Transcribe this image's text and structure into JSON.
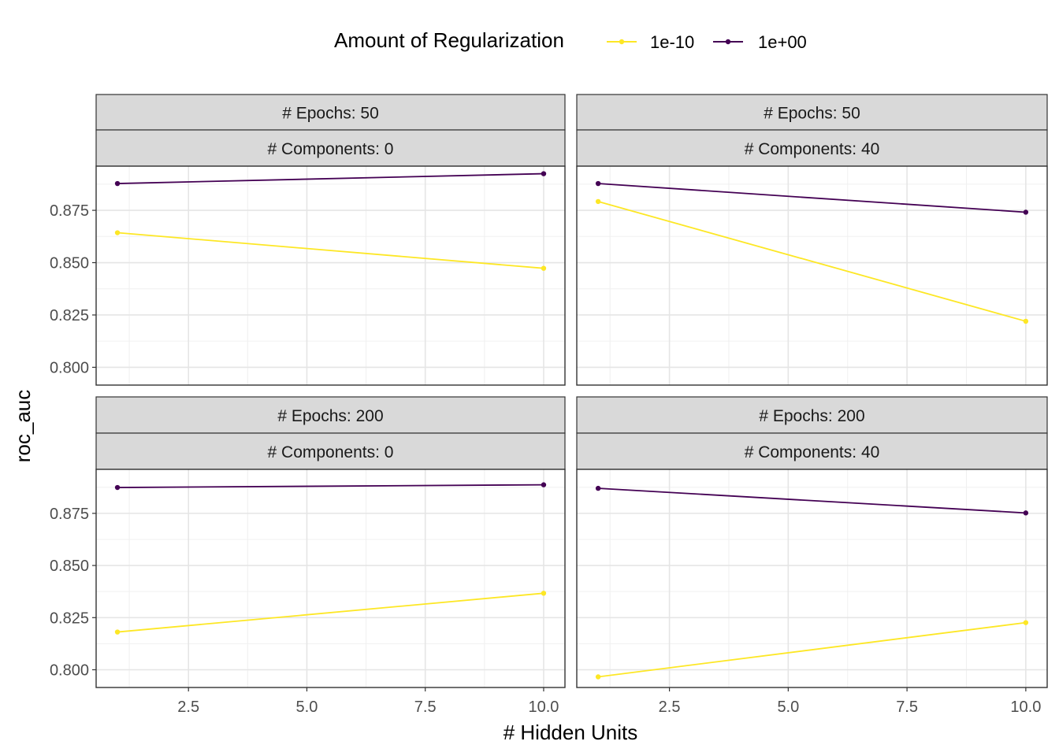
{
  "chart_data": {
    "type": "line",
    "xlabel": "# Hidden Units",
    "ylabel": "roc_auc",
    "xlim": [
      0.55,
      10.45
    ],
    "ylim": [
      0.7915,
      0.8961
    ],
    "x_ticks": [
      2.5,
      5.0,
      7.5,
      10.0
    ],
    "x_tick_labels": [
      "2.5",
      "5.0",
      "7.5",
      "10.0"
    ],
    "y_ticks": [
      0.8,
      0.825,
      0.85,
      0.875
    ],
    "y_tick_labels": [
      "0.800",
      "0.825",
      "0.850",
      "0.875"
    ],
    "grid": true,
    "legend": {
      "title": "Amount of Regularization",
      "position": "top",
      "entries": [
        {
          "label": "1e-10",
          "color": "#FDE725"
        },
        {
          "label": "1e+00",
          "color": "#440154"
        }
      ]
    },
    "panels": [
      {
        "strip_top": "# Epochs: 50",
        "strip_bottom": "# Components: 0",
        "series": [
          {
            "name": "1e-10",
            "x": [
              1,
              10
            ],
            "y": [
              0.8643,
              0.8473
            ]
          },
          {
            "name": "1e+00",
            "x": [
              1,
              10
            ],
            "y": [
              0.8878,
              0.8925
            ]
          }
        ]
      },
      {
        "strip_top": "# Epochs: 50",
        "strip_bottom": "# Components: 40",
        "series": [
          {
            "name": "1e-10",
            "x": [
              1,
              10
            ],
            "y": [
              0.8792,
              0.822
            ]
          },
          {
            "name": "1e+00",
            "x": [
              1,
              10
            ],
            "y": [
              0.8878,
              0.8741
            ]
          }
        ]
      },
      {
        "strip_top": "# Epochs: 200",
        "strip_bottom": "# Components: 0",
        "series": [
          {
            "name": "1e-10",
            "x": [
              1,
              10
            ],
            "y": [
              0.8181,
              0.8367
            ]
          },
          {
            "name": "1e+00",
            "x": [
              1,
              10
            ],
            "y": [
              0.8874,
              0.8887
            ]
          }
        ]
      },
      {
        "strip_top": "# Epochs: 200",
        "strip_bottom": "# Components: 40",
        "series": [
          {
            "name": "1e-10",
            "x": [
              1,
              10
            ],
            "y": [
              0.7966,
              0.8226
            ]
          },
          {
            "name": "1e+00",
            "x": [
              1,
              10
            ],
            "y": [
              0.887,
              0.8752
            ]
          }
        ]
      }
    ]
  }
}
